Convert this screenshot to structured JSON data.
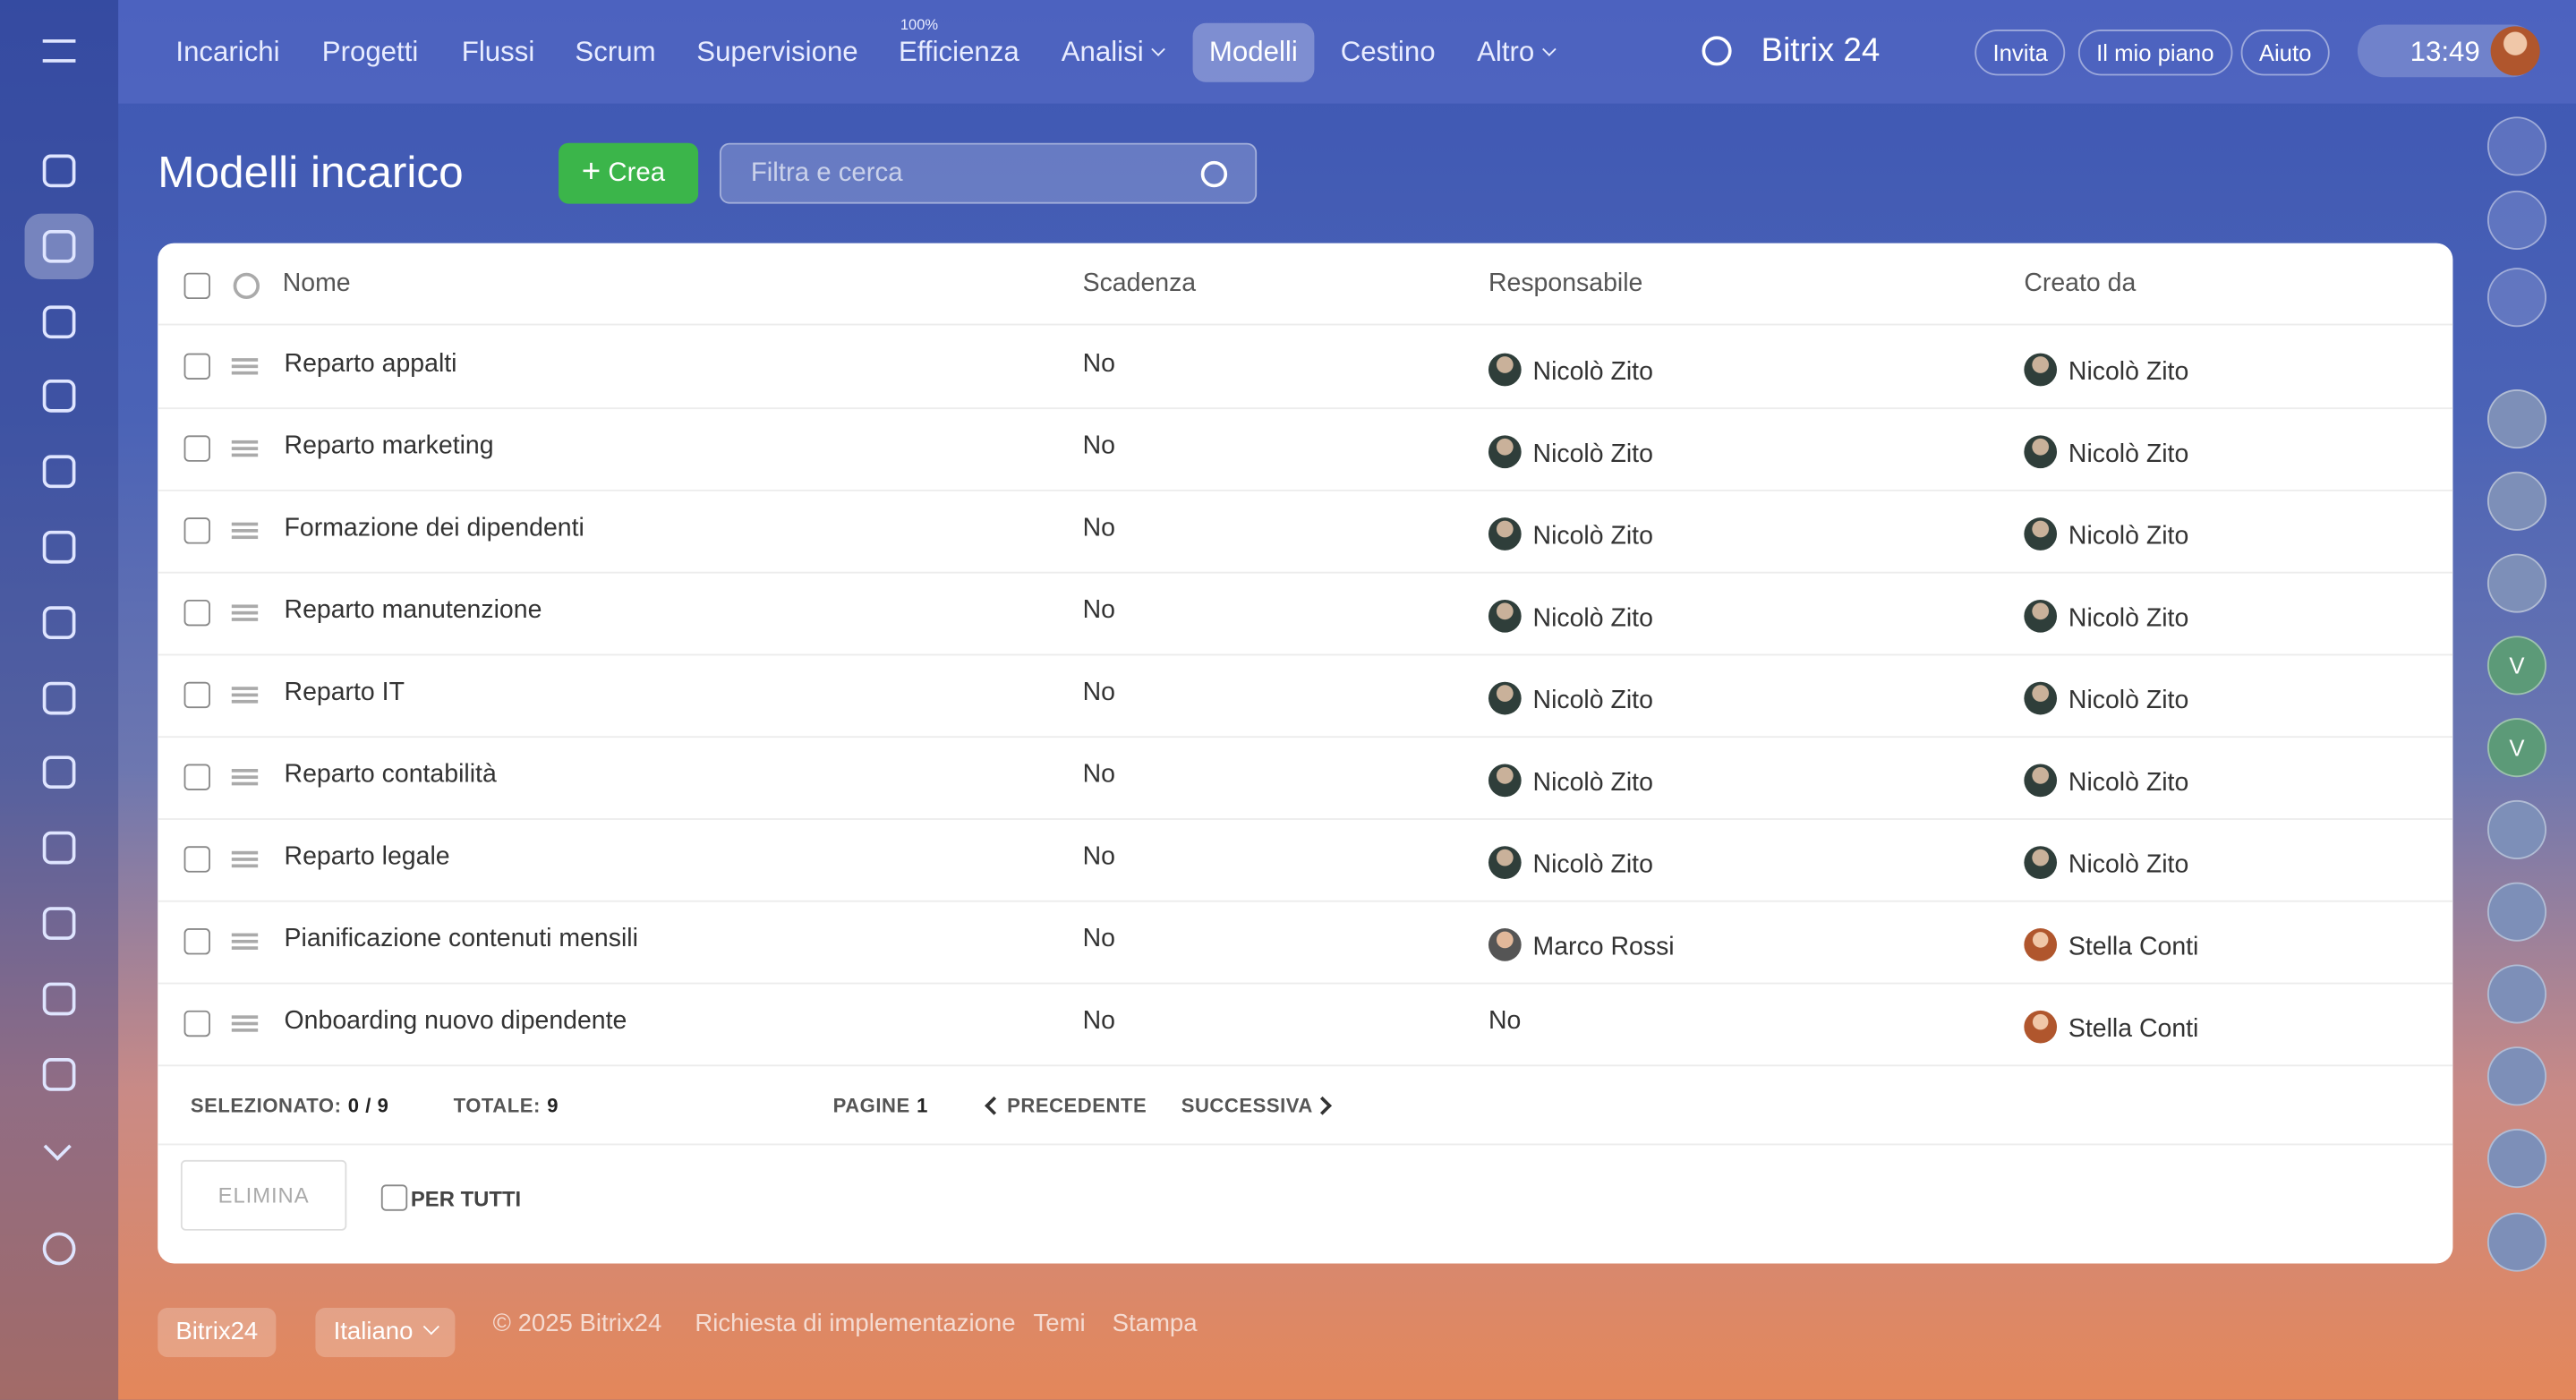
{
  "topbar": {
    "nav": [
      "Incarichi",
      "Progetti",
      "Flussi",
      "Scrum",
      "Supervisione",
      "Efficienza",
      "Analisi",
      "Modelli",
      "Cestino",
      "Altro"
    ],
    "efficiency_badge": "100%",
    "brand": "Bitrix 24",
    "buttons": [
      "Invita",
      "Il mio piano",
      "Aiuto"
    ],
    "time": "13:49"
  },
  "page": {
    "title": "Modelli incarico",
    "create": "Crea",
    "search_placeholder": "Filtra e cerca"
  },
  "table": {
    "columns": [
      "Nome",
      "Scadenza",
      "Responsabile",
      "Creato da"
    ],
    "rows": [
      [
        "Reparto appalti",
        "No",
        "Nicolò Zito",
        "Nicolò Zito"
      ],
      [
        "Reparto marketing",
        "No",
        "Nicolò Zito",
        "Nicolò Zito"
      ],
      [
        "Formazione dei dipendenti",
        "No",
        "Nicolò Zito",
        "Nicolò Zito"
      ],
      [
        "Reparto manutenzione",
        "No",
        "Nicolò Zito",
        "Nicolò Zito"
      ],
      [
        "Reparto IT",
        "No",
        "Nicolò Zito",
        "Nicolò Zito"
      ],
      [
        "Reparto contabilità",
        "No",
        "Nicolò Zito",
        "Nicolò Zito"
      ],
      [
        "Reparto legale",
        "No",
        "Nicolò Zito",
        "Nicolò Zito"
      ],
      [
        "Pianificazione contenuti mensili",
        "No",
        "Marco Rossi",
        "Stella Conti"
      ],
      [
        "Onboarding nuovo dipendente",
        "No",
        "No",
        "Stella Conti"
      ]
    ]
  },
  "pager": {
    "selected_label": "SELEZIONATO:",
    "selected": "0 / 9",
    "total_label": "TOTALE:",
    "total": "9",
    "pages_label": "PAGINE",
    "page": "1",
    "prev": "PRECEDENTE",
    "next": "SUCCESSIVA"
  },
  "actions": {
    "delete": "ELIMINA",
    "for_all": "PER TUTTI"
  },
  "right_sidebar": {
    "avatar_letters": [
      "V",
      "V"
    ]
  },
  "footer": {
    "brand": "Bitrix24",
    "language": "Italiano",
    "copyright": "© 2025 Bitrix24",
    "links": [
      "Richiesta di implementazione",
      "Temi",
      "Stampa"
    ]
  }
}
